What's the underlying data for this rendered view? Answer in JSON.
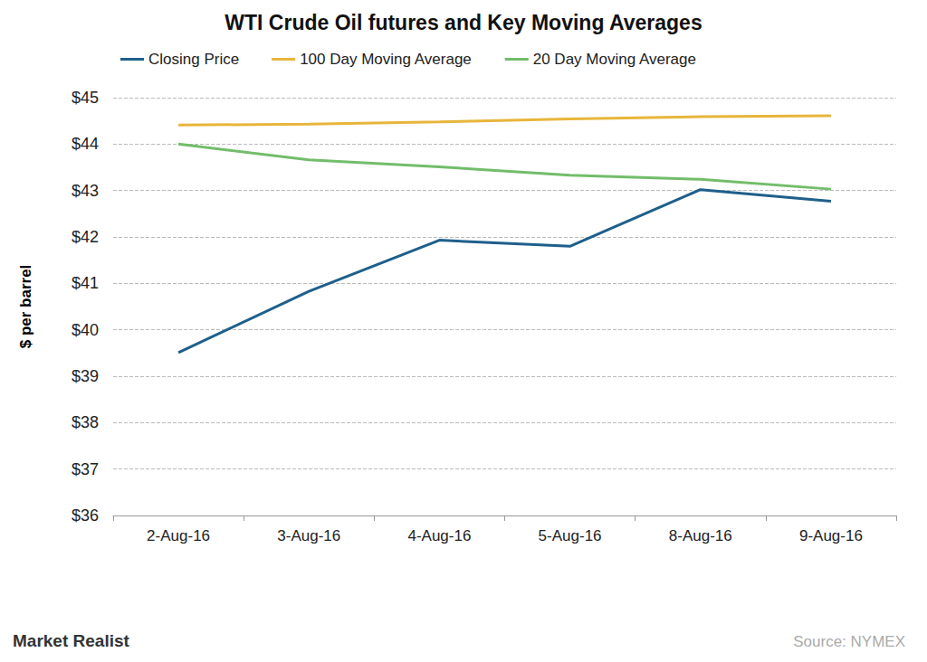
{
  "chart_data": {
    "type": "line",
    "title": "WTI Crude Oil futures and Key Moving Averages",
    "y_label": "$ per barrel",
    "categories": [
      "2-Aug-16",
      "3-Aug-16",
      "4-Aug-16",
      "5-Aug-16",
      "8-Aug-16",
      "9-Aug-16"
    ],
    "series": [
      {
        "name": "Closing Price",
        "color": "#1f5f8b",
        "values": [
          39.51,
          40.83,
          41.93,
          41.8,
          43.02,
          42.77
        ]
      },
      {
        "name": "100 Day Moving Average",
        "color": "#e8b53b",
        "values": [
          44.41,
          44.43,
          44.48,
          44.54,
          44.59,
          44.61
        ]
      },
      {
        "name": "20 Day Moving Average",
        "color": "#72bd6a",
        "values": [
          44.0,
          43.66,
          43.51,
          43.33,
          43.24,
          43.03
        ]
      }
    ],
    "ylim": [
      36,
      45
    ],
    "yticks": [
      {
        "value": 36,
        "label": "$36"
      },
      {
        "value": 37,
        "label": "$37"
      },
      {
        "value": 38,
        "label": "$38"
      },
      {
        "value": 39,
        "label": "$39"
      },
      {
        "value": 40,
        "label": "$40"
      },
      {
        "value": 41,
        "label": "$41"
      },
      {
        "value": 42,
        "label": "$42"
      },
      {
        "value": 43,
        "label": "$43"
      },
      {
        "value": 44,
        "label": "$44"
      },
      {
        "value": 45,
        "label": "$45"
      }
    ],
    "grid": true,
    "legend": "top",
    "brand": "Market Realist",
    "source": "Source: NYMEX"
  }
}
